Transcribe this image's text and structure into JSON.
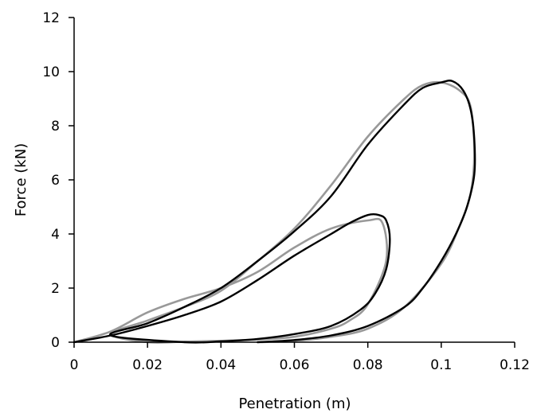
{
  "chart_data": {
    "type": "line",
    "title": "",
    "xlabel": "Penetration (m)",
    "ylabel": "Force (kN)",
    "xlim": [
      0,
      0.12
    ],
    "ylim": [
      0,
      12
    ],
    "x_ticks": [
      "0",
      "0.02",
      "0.04",
      "0.06",
      "0.08",
      "0.1",
      "0.12"
    ],
    "y_ticks": [
      "0",
      "2",
      "4",
      "6",
      "8",
      "10",
      "12"
    ],
    "grid": false,
    "legend": "none",
    "series": [
      {
        "color": "#999999",
        "points": [
          [
            0,
            0
          ],
          [
            0.01,
            0.4
          ],
          [
            0.02,
            1.1
          ],
          [
            0.03,
            1.6
          ],
          [
            0.04,
            2.0
          ],
          [
            0.05,
            2.6
          ],
          [
            0.06,
            3.5
          ],
          [
            0.07,
            4.2
          ],
          [
            0.08,
            4.5
          ],
          [
            0.084,
            4.4
          ],
          [
            0.085,
            3.0
          ],
          [
            0.08,
            1.4
          ],
          [
            0.075,
            0.8
          ],
          [
            0.07,
            0.5
          ],
          [
            0.06,
            0.2
          ],
          [
            0.05,
            0.1
          ],
          [
            0.04,
            0.05
          ],
          [
            0.03,
            0.02
          ],
          [
            0.02,
            0
          ],
          [
            0.01,
            0.3
          ],
          [
            0.02,
            0.8
          ],
          [
            0.03,
            1.3
          ],
          [
            0.04,
            1.9
          ],
          [
            0.05,
            3.0
          ],
          [
            0.06,
            4.2
          ],
          [
            0.07,
            5.8
          ],
          [
            0.08,
            7.6
          ],
          [
            0.09,
            9.0
          ],
          [
            0.095,
            9.5
          ],
          [
            0.1,
            9.6
          ],
          [
            0.105,
            9.3
          ],
          [
            0.108,
            8.7
          ],
          [
            0.109,
            7.0
          ],
          [
            0.108,
            5.5
          ],
          [
            0.105,
            4.3
          ],
          [
            0.1,
            2.9
          ],
          [
            0.09,
            1.3
          ],
          [
            0.08,
            0.5
          ],
          [
            0.07,
            0.2
          ],
          [
            0.06,
            0.05
          ],
          [
            0.05,
            0
          ]
        ]
      },
      {
        "color": "#000000",
        "points": [
          [
            0,
            0
          ],
          [
            0.01,
            0.25
          ],
          [
            0.02,
            0.6
          ],
          [
            0.03,
            1.0
          ],
          [
            0.04,
            1.5
          ],
          [
            0.05,
            2.3
          ],
          [
            0.06,
            3.2
          ],
          [
            0.07,
            4.0
          ],
          [
            0.075,
            4.4
          ],
          [
            0.08,
            4.7
          ],
          [
            0.083,
            4.7
          ],
          [
            0.085,
            4.5
          ],
          [
            0.086,
            3.8
          ],
          [
            0.085,
            2.7
          ],
          [
            0.082,
            1.8
          ],
          [
            0.078,
            1.2
          ],
          [
            0.07,
            0.6
          ],
          [
            0.06,
            0.3
          ],
          [
            0.05,
            0.12
          ],
          [
            0.04,
            0.03
          ],
          [
            0.03,
            0
          ],
          [
            0.01,
            0.25
          ],
          [
            0.02,
            0.7
          ],
          [
            0.03,
            1.3
          ],
          [
            0.04,
            2.0
          ],
          [
            0.05,
            3.0
          ],
          [
            0.06,
            4.1
          ],
          [
            0.07,
            5.4
          ],
          [
            0.08,
            7.3
          ],
          [
            0.09,
            8.8
          ],
          [
            0.095,
            9.4
          ],
          [
            0.1,
            9.6
          ],
          [
            0.103,
            9.65
          ],
          [
            0.106,
            9.3
          ],
          [
            0.108,
            8.6
          ],
          [
            0.109,
            7.5
          ],
          [
            0.109,
            6.2
          ],
          [
            0.107,
            5.0
          ],
          [
            0.104,
            4.0
          ],
          [
            0.1,
            3.0
          ],
          [
            0.095,
            2.0
          ],
          [
            0.09,
            1.3
          ],
          [
            0.08,
            0.6
          ],
          [
            0.07,
            0.25
          ],
          [
            0.06,
            0.08
          ],
          [
            0.05,
            0
          ]
        ]
      }
    ]
  }
}
